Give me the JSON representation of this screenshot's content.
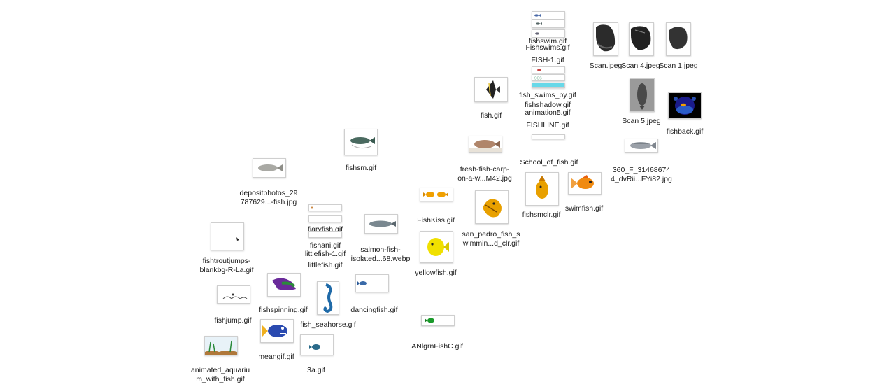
{
  "desktop": {
    "files": [
      {
        "id": "fishswim",
        "label": "fishswim.gif",
        "icon": "small-fish-icon"
      },
      {
        "id": "fishswims",
        "label": "Fishswims.gif",
        "icon": "small-fish-icon"
      },
      {
        "id": "fish1",
        "label": "FISH-1.gif",
        "icon": "small-fish-icon"
      },
      {
        "id": "fish_swims_by",
        "label": "fish_swims_by.gif",
        "icon": "small-fish-icon"
      },
      {
        "id": "fishshadow",
        "label": "fishshadow.gif",
        "icon": "fish-shadow-icon"
      },
      {
        "id": "animation5",
        "label": "animation5.gif",
        "icon": "blank-thumbnail-icon"
      },
      {
        "id": "fishline",
        "label": "FISHLINE.gif",
        "icon": "blank-thumbnail-icon"
      },
      {
        "id": "school_of_fish",
        "label": "School_of_fish.gif",
        "icon": "blank-thumbnail-icon"
      },
      {
        "id": "scan",
        "label": "Scan.jpeg",
        "icon": "scanned-fish-icon"
      },
      {
        "id": "scan4",
        "label": "Scan 4.jpeg",
        "icon": "scanned-fish-icon"
      },
      {
        "id": "scan1",
        "label": "Scan 1.jpeg",
        "icon": "scanned-fish-icon"
      },
      {
        "id": "scan5",
        "label": "Scan 5.jpeg",
        "icon": "scanned-fish-icon"
      },
      {
        "id": "fishback",
        "label": "fishback.gif",
        "icon": "fishbowl-icon"
      },
      {
        "id": "fish",
        "label": "fish.gif",
        "icon": "angelfish-icon"
      },
      {
        "id": "fresh_carp",
        "label": [
          "fresh-fish-carp-",
          "on-a-w...M42.jpg"
        ],
        "icon": "carp-icon"
      },
      {
        "id": "f360",
        "label": [
          "360_F_31468674",
          "4_dvRii...FYi82.jpg"
        ],
        "icon": "bass-icon"
      },
      {
        "id": "fishsm",
        "label": "fishsm.gif",
        "icon": "catfish-icon"
      },
      {
        "id": "depositphotos",
        "label": [
          "depositphotos_29",
          "787629...-fish.jpg"
        ],
        "icon": "silver-fish-icon"
      },
      {
        "id": "fishkiss",
        "label": "FishKiss.gif",
        "icon": "kissing-fish-icon"
      },
      {
        "id": "fishsmclr",
        "label": "fishsmclr.gif",
        "icon": "orange-fish-icon"
      },
      {
        "id": "swimfish",
        "label": "swimfish.gif",
        "icon": "goldfish-icon"
      },
      {
        "id": "san_pedro",
        "label": [
          "san_pedro_fish_s",
          "wimmin...d_clr.gif"
        ],
        "icon": "puffer-fish-icon"
      },
      {
        "id": "yellowfish",
        "label": "yellowfish.gif",
        "icon": "yellow-fish-icon"
      },
      {
        "id": "salmon",
        "label": [
          "salmon-fish-",
          "isolated...68.webp"
        ],
        "icon": "salmon-icon"
      },
      {
        "id": "fiaryfish",
        "label": "fiaryfish.gif",
        "icon": "blank-thumbnail-icon"
      },
      {
        "id": "fishani",
        "label": "fishani.gif",
        "icon": "blank-thumbnail-icon"
      },
      {
        "id": "littlefish1",
        "label": "littlefish-1.gif",
        "icon": "blank-thumbnail-icon"
      },
      {
        "id": "littlefish",
        "label": "littlefish.gif",
        "icon": "blank-thumbnail-icon"
      },
      {
        "id": "fishtrout",
        "label": [
          "fishtroutjumps-",
          "blankbg-R-La.gif"
        ],
        "icon": "tiny-trout-icon"
      },
      {
        "id": "fishspinning",
        "label": "fishspinning.gif",
        "icon": "spinning-fish-icon"
      },
      {
        "id": "fish_seahorse",
        "label": "fish_seahorse.gif",
        "icon": "seahorse-icon"
      },
      {
        "id": "dancingfish",
        "label": "dancingfish.gif",
        "icon": "dancing-fish-icon"
      },
      {
        "id": "fishjump",
        "label": "fishjump.gif",
        "icon": "jumping-fish-icon"
      },
      {
        "id": "meangif",
        "label": "meangif.gif",
        "icon": "mean-fish-icon"
      },
      {
        "id": "anlgrn",
        "label": "ANlgrnFishC.gif",
        "icon": "green-fish-icon"
      },
      {
        "id": "aquarium",
        "label": [
          "animated_aquariu",
          "m_with_fish.gif"
        ],
        "icon": "aquarium-icon"
      },
      {
        "id": "f3a",
        "label": "3a.gif",
        "icon": "small-fish-icon"
      }
    ]
  }
}
